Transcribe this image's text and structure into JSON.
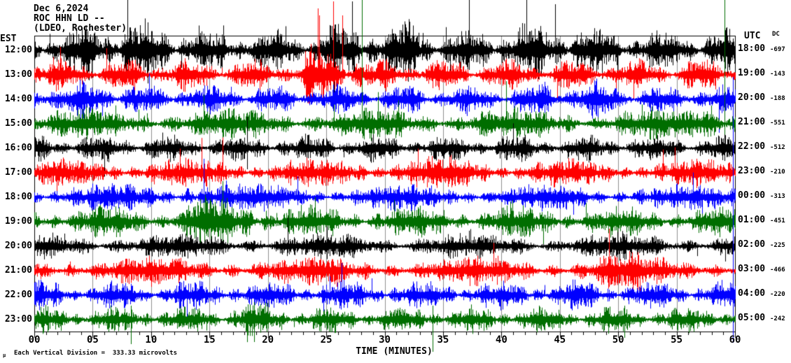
{
  "header": {
    "date": "Dec 6,2024",
    "station": "ROC HHN LD --",
    "network": "(LDEO, Rochester)"
  },
  "axes": {
    "left_tz_label": "EST",
    "right_tz_label": "UTC",
    "dc_header": "DC",
    "x_title": "TIME (MINUTES)",
    "x_ticks": [
      "00",
      "05",
      "10",
      "15",
      "20",
      "25",
      "30",
      "35",
      "40",
      "45",
      "50",
      "55",
      "60"
    ],
    "footnote_glyph": "µ",
    "footnote": "Each Vertical Division =  333.33 microvolts"
  },
  "chart_data": {
    "type": "line",
    "subtype": "helicorder-seismogram",
    "title": "ROC HHN LD (LDEO, Rochester) Dec 6,2024",
    "xlabel": "TIME (MINUTES)",
    "x_range": [
      0,
      60
    ],
    "x_tick_step_min": 5,
    "minor_tick_step_min": 1,
    "grid": {
      "vertical_gridline_every_min": 5,
      "color": "#8f8f8f"
    },
    "vertical_division_microvolts": 333.33,
    "palette": {
      "black": "#000000",
      "red": "#ff0000",
      "blue": "#0000ff",
      "green": "#006e00"
    },
    "rows": [
      {
        "est": "12:00",
        "utc": "18:00",
        "dc": "-697",
        "color": "black",
        "seed": 11,
        "amp": 34,
        "spike_prob": 0.022,
        "bursts": [
          {
            "from": 4,
            "to": 12,
            "mult": 1.55
          },
          {
            "from": 25,
            "to": 33,
            "mult": 1.45
          },
          {
            "from": 40,
            "to": 48,
            "mult": 1.35
          }
        ],
        "spikes": [
          {
            "min": 8.0,
            "up": 72,
            "down": 20
          },
          {
            "min": 27.2,
            "up": 70,
            "down": 16
          },
          {
            "min": 44.6,
            "up": 66,
            "down": 18
          }
        ]
      },
      {
        "est": "13:00",
        "utc": "19:00",
        "dc": "-143",
        "color": "red",
        "seed": 22,
        "amp": 26,
        "spike_prob": 0.012,
        "bursts": [
          {
            "from": 23,
            "to": 28,
            "mult": 1.85
          }
        ],
        "spikes": [
          {
            "min": 24.3,
            "up": 95,
            "down": 15
          },
          {
            "min": 25.6,
            "up": 105,
            "down": 18
          },
          {
            "min": 26.4,
            "up": 85,
            "down": 12
          }
        ]
      },
      {
        "est": "14:00",
        "utc": "20:00",
        "dc": "-188",
        "color": "blue",
        "seed": 33,
        "amp": 24,
        "spike_prob": 0.01,
        "bursts": [
          {
            "from": 0,
            "to": 8,
            "mult": 1.3
          },
          {
            "from": 43,
            "to": 50,
            "mult": 1.3
          }
        ],
        "spikes": []
      },
      {
        "est": "15:00",
        "utc": "21:00",
        "dc": "-551",
        "color": "green",
        "seed": 44,
        "amp": 26,
        "spike_prob": 0.01,
        "bursts": [
          {
            "from": 56,
            "to": 60,
            "mult": 1.7
          }
        ],
        "spikes": [
          {
            "min": 28.05,
            "up": 180,
            "down": 14
          },
          {
            "min": 59.1,
            "up": 200,
            "down": 35
          }
        ]
      },
      {
        "est": "16:00",
        "utc": "22:00",
        "dc": "-512",
        "color": "black",
        "seed": 55,
        "amp": 22,
        "spike_prob": 0.01,
        "bursts": [],
        "spikes": [
          {
            "min": 18.2,
            "up": 45,
            "down": 30
          }
        ]
      },
      {
        "est": "17:00",
        "utc": "23:00",
        "dc": "-210",
        "color": "red",
        "seed": 66,
        "amp": 24,
        "spike_prob": 0.01,
        "bursts": [
          {
            "from": 30,
            "to": 38,
            "mult": 1.2
          }
        ],
        "spikes": []
      },
      {
        "est": "18:00",
        "utc": "00:00",
        "dc": "-313",
        "color": "blue",
        "seed": 77,
        "amp": 22,
        "spike_prob": 0.01,
        "bursts": [
          {
            "from": 13,
            "to": 17,
            "mult": 1.5
          }
        ],
        "spikes": [
          {
            "min": 14.5,
            "up": 55,
            "down": 40
          }
        ]
      },
      {
        "est": "19:00",
        "utc": "01:00",
        "dc": "-451",
        "color": "green",
        "seed": 88,
        "amp": 26,
        "spike_prob": 0.01,
        "bursts": [
          {
            "from": 13,
            "to": 20,
            "mult": 1.65
          }
        ],
        "spikes": [
          {
            "min": 16.1,
            "up": 58,
            "down": 34
          }
        ]
      },
      {
        "est": "20:00",
        "utc": "02:00",
        "dc": "-225",
        "color": "black",
        "seed": 99,
        "amp": 22,
        "spike_prob": 0.01,
        "bursts": [],
        "spikes": []
      },
      {
        "est": "21:00",
        "utc": "03:00",
        "dc": "-466",
        "color": "red",
        "seed": 110,
        "amp": 24,
        "spike_prob": 0.01,
        "bursts": [
          {
            "from": 48,
            "to": 52,
            "mult": 1.4
          }
        ],
        "spikes": [
          {
            "min": 49.2,
            "up": 60,
            "down": 20
          }
        ]
      },
      {
        "est": "22:00",
        "utc": "04:00",
        "dc": "-220",
        "color": "blue",
        "seed": 121,
        "amp": 24,
        "spike_prob": 0.01,
        "bursts": [],
        "spikes": [
          {
            "min": 59.85,
            "up": 312,
            "down": 68
          }
        ]
      },
      {
        "est": "23:00",
        "utc": "05:00",
        "dc": "-242",
        "color": "green",
        "seed": 132,
        "amp": 22,
        "spike_prob": 0.01,
        "bursts": [
          {
            "from": 17,
            "to": 20,
            "mult": 1.3
          }
        ],
        "spikes": [
          {
            "min": 8.3,
            "up": 20,
            "down": 35
          },
          {
            "min": 18.8,
            "up": 25,
            "down": 32
          },
          {
            "min": 34.1,
            "up": 20,
            "down": 46
          },
          {
            "min": 50.5,
            "up": 20,
            "down": 26
          }
        ]
      }
    ]
  }
}
